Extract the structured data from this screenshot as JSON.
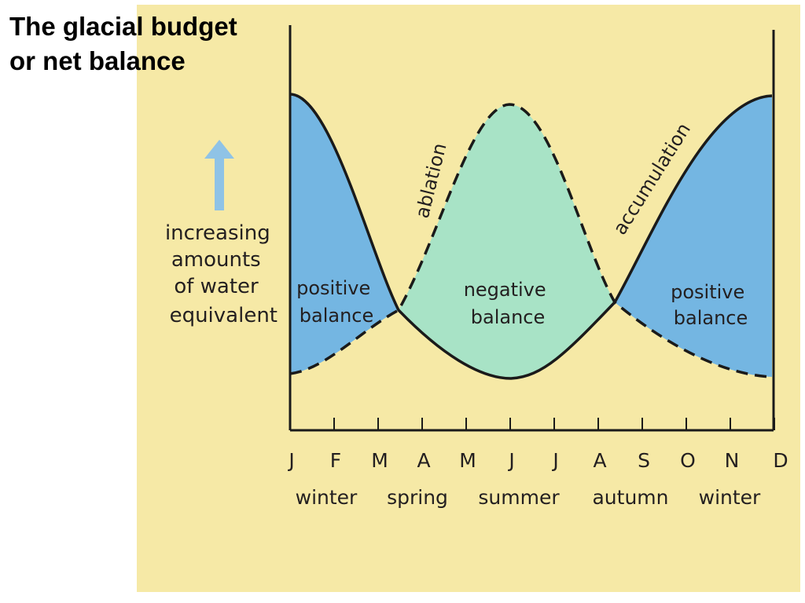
{
  "title": {
    "line1": "The glacial budget",
    "line2": "or net balance"
  },
  "colors": {
    "background": "#ffffff",
    "figure_background": "#f6e9a6",
    "positive_fill": "#74b6e2",
    "negative_fill": "#a8e3c6",
    "arrow": "#8fc3e6",
    "line": "#1a1a1a"
  },
  "y_axis_label": [
    "increasing",
    "amounts",
    "of water",
    "equivalent"
  ],
  "months": [
    "J",
    "F",
    "M",
    "A",
    "M",
    "J",
    "J",
    "A",
    "S",
    "O",
    "N",
    "D"
  ],
  "seasons": [
    "winter",
    "spring",
    "summer",
    "autumn",
    "winter"
  ],
  "curves": {
    "ablation": "ablation",
    "accumulation": "accumulation"
  },
  "regions": {
    "positive_left": [
      "positive",
      "balance"
    ],
    "negative": [
      "negative",
      "balance"
    ],
    "positive_right": [
      "positive",
      "balance"
    ]
  }
}
